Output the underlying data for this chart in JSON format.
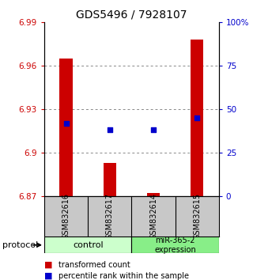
{
  "title": "GDS5496 / 7928107",
  "samples": [
    "GSM832616",
    "GSM832617",
    "GSM832614",
    "GSM832615"
  ],
  "bar_values": [
    6.965,
    6.893,
    6.872,
    6.978
  ],
  "bar_base": 6.87,
  "percentile_values": [
    42,
    38,
    38,
    45
  ],
  "ylim_left": [
    6.87,
    6.99
  ],
  "ylim_right": [
    0,
    100
  ],
  "yticks_left": [
    6.87,
    6.9,
    6.93,
    6.96,
    6.99
  ],
  "yticks_right": [
    0,
    25,
    50,
    75,
    100
  ],
  "ytick_labels_left": [
    "6.87",
    "6.9",
    "6.93",
    "6.96",
    "6.99"
  ],
  "ytick_labels_right": [
    "0",
    "25",
    "50",
    "75",
    "100%"
  ],
  "bar_color": "#cc0000",
  "percentile_color": "#0000cc",
  "grid_color": "#888888",
  "bg_color": "#ffffff",
  "group_control_label": "control",
  "group_mir_label": "miR-365-2\nexpression",
  "group_control_color": "#ccffcc",
  "group_mir_color": "#88ee88",
  "sample_bg_color": "#c8c8c8",
  "protocol_label": "protocol",
  "legend_items": [
    {
      "label": "transformed count",
      "color": "#cc0000"
    },
    {
      "label": "percentile rank within the sample",
      "color": "#0000cc"
    }
  ]
}
